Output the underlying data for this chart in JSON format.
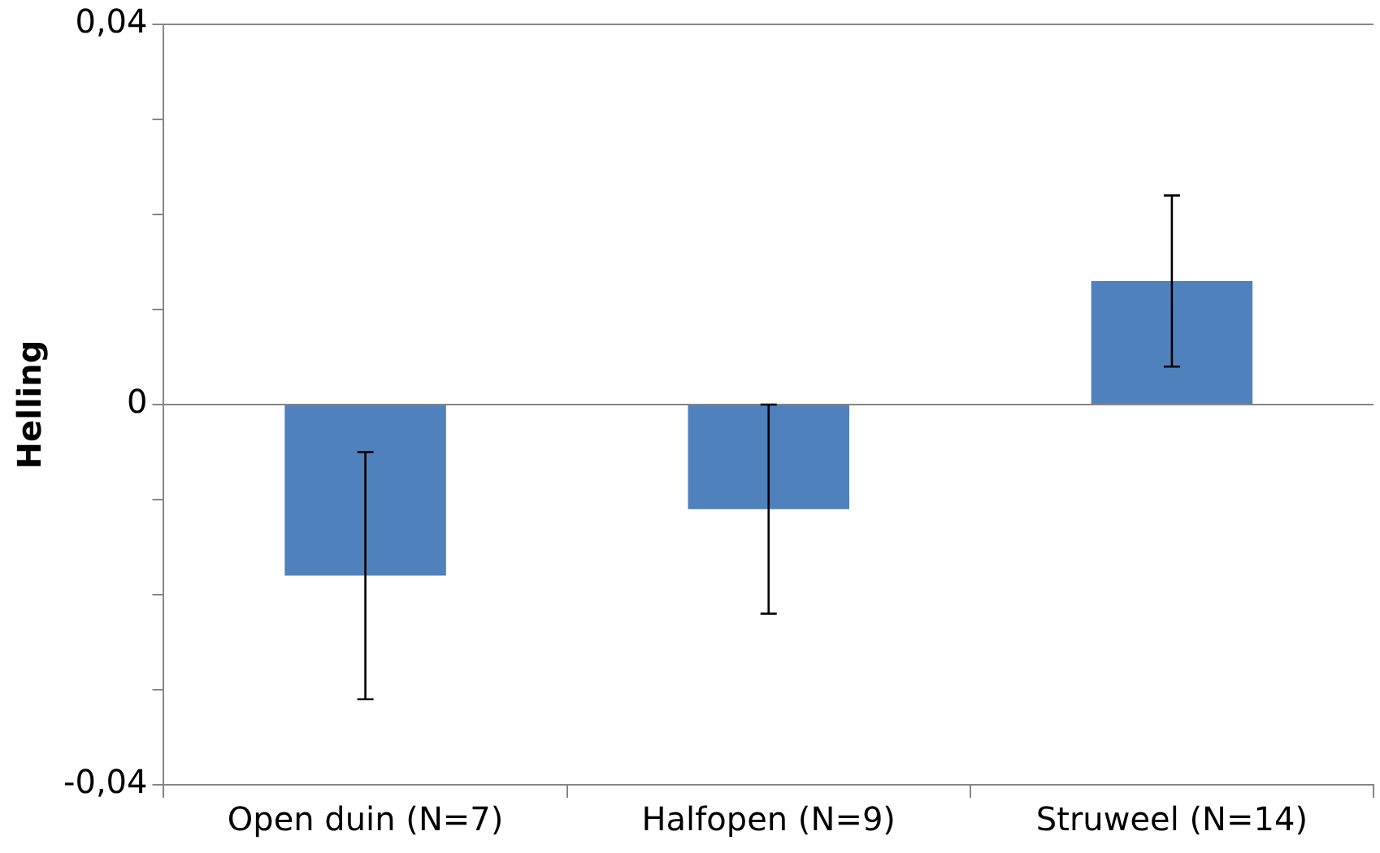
{
  "chart_data": {
    "type": "bar",
    "ylabel": "Helling",
    "categories": [
      "Open duin (N=7)",
      "Halfopen (N=9)",
      "Struweel (N=14)"
    ],
    "values": [
      -0.018,
      -0.011,
      0.013
    ],
    "errors": [
      0.013,
      0.011,
      0.009
    ],
    "color": "#4f81bd",
    "ylim": [
      -0.04,
      0.04
    ],
    "yticks": [
      {
        "value": -0.04,
        "label": "-0,04"
      },
      {
        "value": -0.03,
        "label": null
      },
      {
        "value": -0.02,
        "label": null
      },
      {
        "value": -0.01,
        "label": null
      },
      {
        "value": 0,
        "label": "0"
      },
      {
        "value": 0.01,
        "label": null
      },
      {
        "value": 0.02,
        "label": null
      },
      {
        "value": 0.03,
        "label": null
      },
      {
        "value": 0.04,
        "label": "0,04"
      }
    ],
    "grid": "y",
    "legend": false
  }
}
